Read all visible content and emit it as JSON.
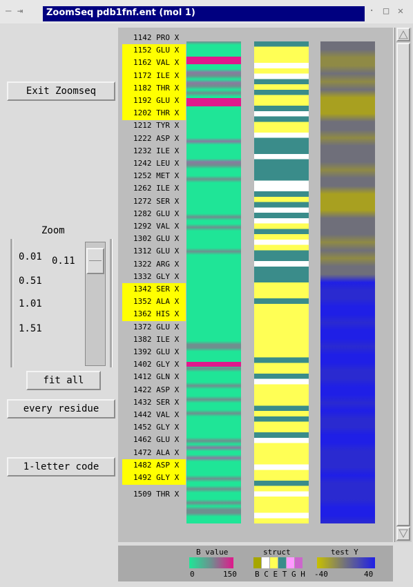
{
  "window": {
    "title": "ZoomSeq  pdb1fnf.ent (mol 1)",
    "controls_left": "— ⇥",
    "controls_right": "· □ ✕"
  },
  "buttons": {
    "exit": "Exit Zoomseq",
    "fit_all": "fit all",
    "every_residue": "every residue",
    "letter_code": "1-letter code"
  },
  "zoom": {
    "label": "Zoom",
    "marks": [
      "0.01",
      "0.51",
      "1.01",
      "1.51"
    ],
    "current": "0.11",
    "slider_value": 0.11,
    "slider_min": 0.01,
    "slider_max": 2.0
  },
  "residues": [
    "1142 PRO X",
    "1152 GLU X",
    "1162 VAL X",
    "1172 ILE X",
    "1182 THR X",
    "1192 GLU X",
    "1202 THR X",
    "1212 TYR X",
    "1222 ASP X",
    "1232 ILE X",
    "1242 LEU X",
    "1252 MET X",
    "1262 ILE X",
    "1272 SER X",
    "1282 GLU X",
    "1292 VAL X",
    "1302 GLU X",
    "1312 GLU X",
    "1322 ARG X",
    "1332 GLY X",
    "1342 SER X",
    "1352 ALA X",
    "1362 HIS X",
    "1372 GLU X",
    "1382 ILE X",
    "1392 GLU X",
    "1402 GLY X",
    "1412 GLN X",
    "1422 ASP X",
    "1432 SER X",
    "1442 VAL X",
    "1452 GLY X",
    "1462 GLU X",
    "1472 ALA X",
    "1482 ASP X",
    "1492 GLY X",
    "1509 THR X"
  ],
  "highlighted_residues": [
    "1152 GLU X",
    "1162 VAL X",
    "1172 ILE X",
    "1182 THR X",
    "1192 GLU X",
    "1202 THR X",
    "1342 SER X",
    "1352 ALA X",
    "1362 HIS X",
    "1482 ASP X",
    "1492 GLY X"
  ],
  "legend": {
    "bvalue": {
      "title": "B value",
      "min": "0",
      "max": "150"
    },
    "struct": {
      "title": "struct",
      "codes": "B C E T G H"
    },
    "testy": {
      "title": "test Y",
      "min": "-40",
      "max": "40"
    }
  },
  "colors": {
    "highlight": "#ffff00",
    "bvalue_low": "#1fe597",
    "bvalue_mid": "#6f8f8f",
    "bvalue_high": "#e0188c",
    "struct_helix": "#ffff55",
    "struct_turn": "#3a8c8a",
    "struct_coil": "#ffffff",
    "testy_pos": "#c8c000",
    "testy_mid": "#6e6e82",
    "testy_neg": "#1f1fe6",
    "title_bg": "#000080"
  },
  "struct_legend_colors": [
    "#a6a600",
    "#ffffff",
    "#ffff55",
    "#3a8c8a",
    "#ff99ff",
    "#cc66cc"
  ]
}
